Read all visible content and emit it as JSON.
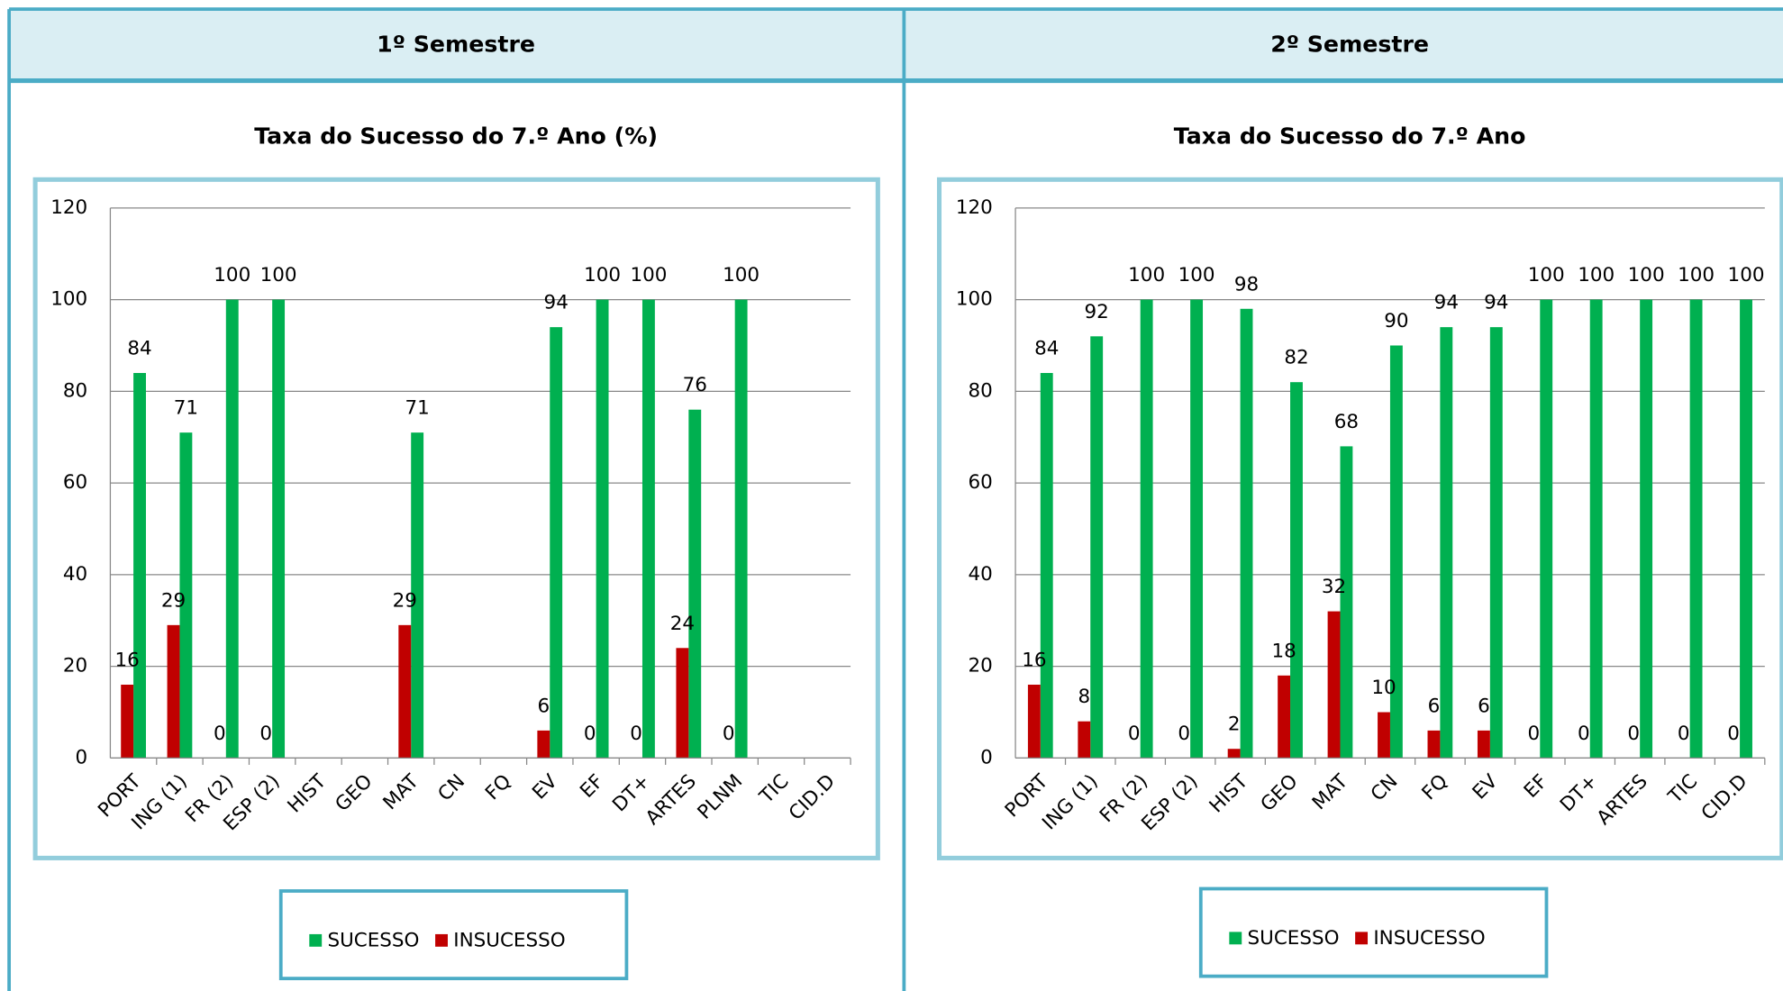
{
  "table": {
    "headers": [
      "1º Semestre",
      "2º Semestre"
    ]
  },
  "chart_data": [
    {
      "type": "bar",
      "title": "Taxa do Sucesso do 7.º Ano (%)",
      "categories": [
        "PORT",
        "ING (1)",
        "FR (2)",
        "ESP (2)",
        "HIST",
        "GEO",
        "MAT",
        "CN",
        "FQ",
        "EV",
        "EF",
        "DT+",
        "ARTES",
        "PLNM",
        "TIC",
        "CID.D"
      ],
      "series": [
        {
          "name": "SUCESSO",
          "color": "#00b050",
          "values": [
            84,
            71,
            100,
            100,
            null,
            null,
            71,
            null,
            null,
            94,
            100,
            100,
            76,
            100,
            null,
            null
          ]
        },
        {
          "name": "INSUCESSO",
          "color": "#c00000",
          "values": [
            16,
            29,
            0,
            0,
            null,
            null,
            29,
            null,
            null,
            6,
            0,
            0,
            24,
            0,
            null,
            null
          ]
        }
      ],
      "ylim": [
        0,
        120
      ],
      "yticks": [
        0,
        20,
        40,
        60,
        80,
        100,
        120
      ],
      "grid": true,
      "legend": "bottom"
    },
    {
      "type": "bar",
      "title": "Taxa do Sucesso do 7.º Ano",
      "categories": [
        "PORT",
        "ING (1)",
        "FR (2)",
        "ESP (2)",
        "HIST",
        "GEO",
        "MAT",
        "CN",
        "FQ",
        "EV",
        "EF",
        "DT+",
        "ARTES",
        "TIC",
        "CID.D"
      ],
      "series": [
        {
          "name": "SUCESSO",
          "color": "#00b050",
          "values": [
            84,
            92,
            100,
            100,
            98,
            82,
            68,
            90,
            94,
            94,
            100,
            100,
            100,
            100,
            100
          ]
        },
        {
          "name": "INSUCESSO",
          "color": "#c00000",
          "values": [
            16,
            8,
            0,
            0,
            2,
            18,
            32,
            10,
            6,
            6,
            0,
            0,
            0,
            0,
            0
          ]
        }
      ],
      "ylim": [
        0,
        120
      ],
      "yticks": [
        0,
        20,
        40,
        60,
        80,
        100,
        120
      ],
      "grid": true,
      "legend": "bottom"
    }
  ]
}
